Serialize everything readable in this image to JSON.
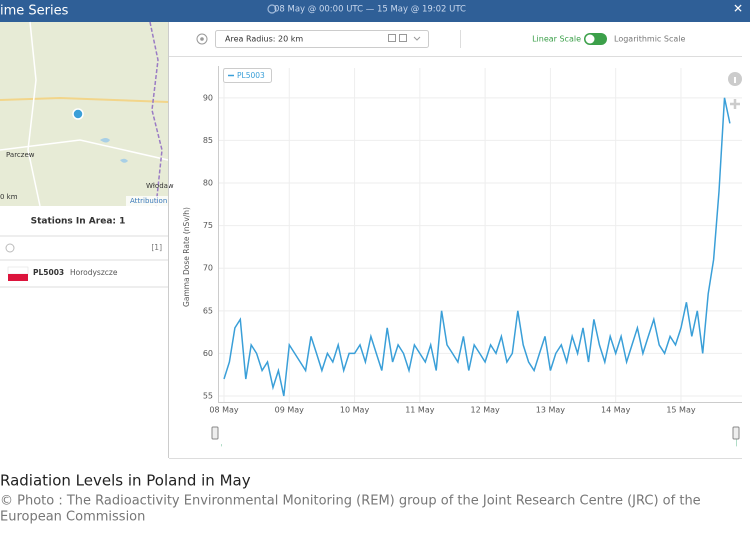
{
  "header": {
    "title": "ime Series",
    "time_range": "08 May @ 00:00 UTC — 15 May @ 19:02 UTC",
    "close": "✕"
  },
  "map": {
    "labels": [
      "Parczew",
      "Włodaw"
    ],
    "scale": "0 km",
    "attribution": "Attribution"
  },
  "stations": {
    "title": "Stations In Area: 1",
    "count": "[1]",
    "rows": [
      {
        "code": "PL5003",
        "name": "Horodyszcze"
      }
    ]
  },
  "toolbar": {
    "radius": "Area Radius: 20 km",
    "linear": "Linear Scale",
    "log": "Logarithmic Scale"
  },
  "chart_data": {
    "type": "line",
    "y_label": "Gamma Dose Rate (nSv/h)",
    "categories": [
      "08 May",
      null,
      null,
      null,
      null,
      null,
      null,
      null,
      null,
      null,
      null,
      null,
      "09 May",
      null,
      null,
      null,
      null,
      null,
      null,
      null,
      null,
      null,
      null,
      null,
      "10 May",
      null,
      null,
      null,
      null,
      null,
      null,
      null,
      null,
      null,
      null,
      null,
      "11 May",
      null,
      null,
      null,
      null,
      null,
      null,
      null,
      null,
      null,
      null,
      null,
      "12 May",
      null,
      null,
      null,
      null,
      null,
      null,
      null,
      null,
      null,
      null,
      null,
      "13 May",
      null,
      null,
      null,
      null,
      null,
      null,
      null,
      null,
      null,
      null,
      null,
      "14 May",
      null,
      null,
      null,
      null,
      null,
      null,
      null,
      null,
      null,
      null,
      null,
      "15 May",
      null,
      null,
      null,
      null,
      null,
      null,
      null,
      null,
      null
    ],
    "series": [
      {
        "name": "PL5003",
        "color": "#3a9fd8",
        "values": [
          57,
          59,
          63,
          64,
          57,
          61,
          60,
          58,
          59,
          56,
          58,
          55,
          61,
          60,
          59,
          58,
          62,
          60,
          58,
          60,
          59,
          61,
          58,
          60,
          60,
          61,
          59,
          62,
          60,
          58,
          63,
          59,
          61,
          60,
          58,
          61,
          60,
          59,
          61,
          58,
          65,
          61,
          60,
          59,
          62,
          58,
          61,
          60,
          59,
          61,
          60,
          62,
          59,
          60,
          65,
          61,
          59,
          58,
          60,
          62,
          58,
          60,
          61,
          59,
          62,
          60,
          63,
          59,
          64,
          61,
          59,
          62,
          60,
          62,
          59,
          61,
          63,
          60,
          62,
          64,
          61,
          60,
          62,
          61,
          63,
          66,
          62,
          65,
          60,
          67,
          71,
          79,
          90,
          87
        ]
      }
    ],
    "ylim": [
      54.3,
      93.5
    ],
    "yticks": [
      55,
      60,
      65,
      70,
      75,
      80,
      85,
      90
    ],
    "grid": true,
    "log_scale": false
  },
  "caption": {
    "title": "Radiation Levels in Poland in May",
    "credit": [
      "© Photo : The Radioactivity Environmental Monitoring (REM) group of the Joint Research Centre (JRC) of the",
      "European Commission"
    ]
  }
}
